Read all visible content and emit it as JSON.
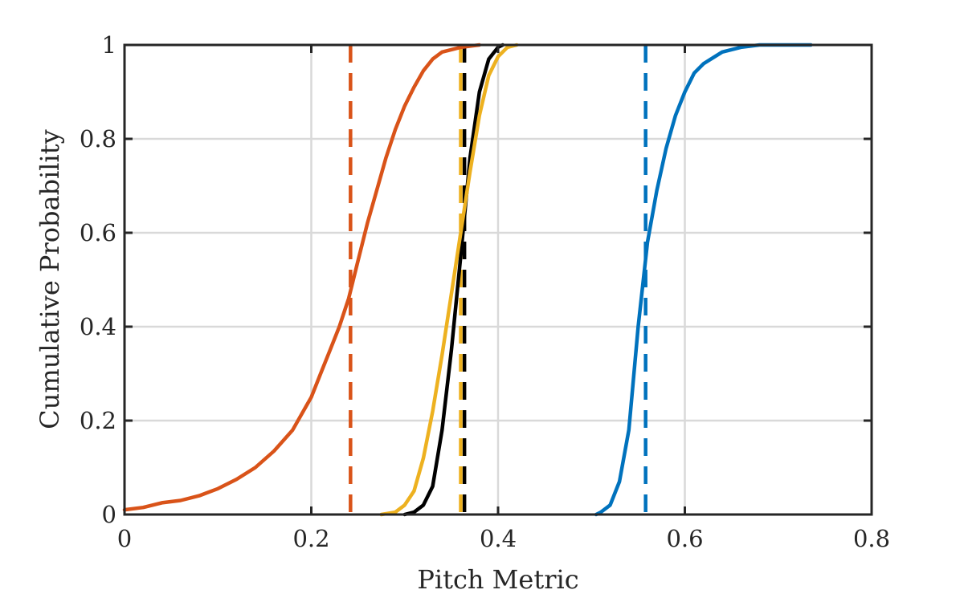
{
  "chart_data": {
    "type": "line",
    "title": "",
    "xlabel": "Pitch Metric",
    "ylabel": "Cumulative Probability",
    "xlim": [
      0,
      0.8
    ],
    "ylim": [
      0,
      1
    ],
    "xticks": [
      0,
      0.2,
      0.4,
      0.6,
      0.8
    ],
    "xtick_labels": [
      "0",
      "0.2",
      "0.4",
      "0.6",
      "0.8"
    ],
    "yticks": [
      0,
      0.2,
      0.4,
      0.6,
      0.8,
      1
    ],
    "ytick_labels": [
      "0",
      "0.2",
      "0.4",
      "0.6",
      "0.8",
      "1"
    ],
    "grid": true,
    "series": [
      {
        "color": "#D95319",
        "style": "solid",
        "points": [
          [
            0,
            0.01
          ],
          [
            0.02,
            0.015
          ],
          [
            0.04,
            0.025
          ],
          [
            0.06,
            0.03
          ],
          [
            0.08,
            0.04
          ],
          [
            0.1,
            0.055
          ],
          [
            0.12,
            0.075
          ],
          [
            0.14,
            0.1
          ],
          [
            0.16,
            0.135
          ],
          [
            0.18,
            0.18
          ],
          [
            0.2,
            0.25
          ],
          [
            0.21,
            0.3
          ],
          [
            0.22,
            0.35
          ],
          [
            0.23,
            0.4
          ],
          [
            0.24,
            0.46
          ],
          [
            0.25,
            0.54
          ],
          [
            0.26,
            0.62
          ],
          [
            0.27,
            0.69
          ],
          [
            0.28,
            0.76
          ],
          [
            0.29,
            0.82
          ],
          [
            0.3,
            0.87
          ],
          [
            0.31,
            0.91
          ],
          [
            0.32,
            0.945
          ],
          [
            0.33,
            0.97
          ],
          [
            0.34,
            0.985
          ],
          [
            0.36,
            0.995
          ],
          [
            0.38,
            1.0
          ]
        ]
      },
      {
        "color": "#000000",
        "style": "solid",
        "points": [
          [
            0.3,
            0.0
          ],
          [
            0.31,
            0.005
          ],
          [
            0.32,
            0.02
          ],
          [
            0.33,
            0.06
          ],
          [
            0.34,
            0.18
          ],
          [
            0.35,
            0.35
          ],
          [
            0.36,
            0.55
          ],
          [
            0.37,
            0.76
          ],
          [
            0.38,
            0.9
          ],
          [
            0.39,
            0.97
          ],
          [
            0.4,
            0.995
          ],
          [
            0.405,
            1.0
          ]
        ]
      },
      {
        "color": "#EDB120",
        "style": "solid",
        "points": [
          [
            0.275,
            0.0
          ],
          [
            0.29,
            0.005
          ],
          [
            0.3,
            0.02
          ],
          [
            0.31,
            0.05
          ],
          [
            0.32,
            0.12
          ],
          [
            0.33,
            0.22
          ],
          [
            0.34,
            0.34
          ],
          [
            0.35,
            0.47
          ],
          [
            0.36,
            0.6
          ],
          [
            0.37,
            0.73
          ],
          [
            0.38,
            0.85
          ],
          [
            0.39,
            0.935
          ],
          [
            0.4,
            0.975
          ],
          [
            0.41,
            0.995
          ],
          [
            0.42,
            1.0
          ]
        ]
      },
      {
        "color": "#0072BD",
        "style": "solid",
        "points": [
          [
            0.505,
            0.0
          ],
          [
            0.51,
            0.005
          ],
          [
            0.52,
            0.02
          ],
          [
            0.53,
            0.07
          ],
          [
            0.54,
            0.18
          ],
          [
            0.55,
            0.4
          ],
          [
            0.56,
            0.58
          ],
          [
            0.57,
            0.69
          ],
          [
            0.58,
            0.78
          ],
          [
            0.59,
            0.85
          ],
          [
            0.6,
            0.9
          ],
          [
            0.61,
            0.94
          ],
          [
            0.62,
            0.96
          ],
          [
            0.64,
            0.985
          ],
          [
            0.66,
            0.995
          ],
          [
            0.68,
            1.0
          ],
          [
            0.735,
            1.0
          ]
        ]
      },
      {
        "color": "#D95319",
        "style": "dashed",
        "x": 0.242
      },
      {
        "color": "#000000",
        "style": "dashed",
        "x": 0.364
      },
      {
        "color": "#EDB120",
        "style": "dashed",
        "x": 0.36
      },
      {
        "color": "#0072BD",
        "style": "dashed",
        "x": 0.558
      }
    ]
  }
}
